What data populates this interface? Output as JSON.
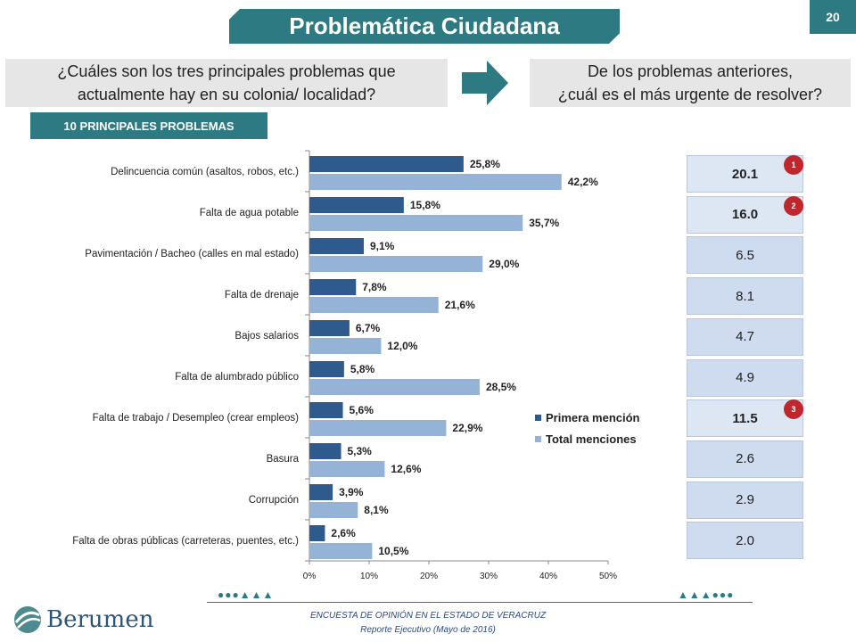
{
  "header": {
    "title": "Problemática Ciudadana",
    "page_number": "20"
  },
  "questions": {
    "left_line1": "¿Cuáles son los tres principales problemas que",
    "left_line2": "actualmente hay en su colonia/ localidad?",
    "right_line1": "De los problemas anteriores,",
    "right_line2": "¿cuál es el más urgente de resolver?"
  },
  "section_label": "10 PRINCIPALES PROBLEMAS",
  "colors": {
    "teal": "#2e7a83",
    "primera": "#2e5a8e",
    "total": "#95b3d7",
    "cell_light": "#cfdcef",
    "cell_highlight": "#dde7f4",
    "badge": "#c0272d"
  },
  "chart_data": {
    "type": "bar",
    "orientation": "horizontal",
    "categories": [
      "Delincuencia común (asaltos, robos, etc.)",
      "Falta de agua potable",
      "Pavimentación / Bacheo (calles en mal estado)",
      "Falta de drenaje",
      "Bajos salarios",
      "Falta de alumbrado público",
      "Falta de trabajo / Desempleo (crear empleos)",
      "Basura",
      "Corrupción",
      "Falta de obras públicas (carreteras, puentes, etc.)"
    ],
    "series": [
      {
        "name": "Primera mención",
        "values": [
          25.8,
          15.8,
          9.1,
          7.8,
          6.7,
          5.8,
          5.6,
          5.3,
          3.9,
          2.6
        ],
        "labels": [
          "25,8%",
          "15,8%",
          "9,1%",
          "7,8%",
          "6,7%",
          "5,8%",
          "5,6%",
          "5,3%",
          "3,9%",
          "2,6%"
        ]
      },
      {
        "name": "Total menciones",
        "values": [
          42.2,
          35.7,
          29.0,
          21.6,
          12.0,
          28.5,
          22.9,
          12.6,
          8.1,
          10.5
        ],
        "labels": [
          "42,2%",
          "35,7%",
          "29,0%",
          "21,6%",
          "12,0%",
          "28,5%",
          "22,9%",
          "12,6%",
          "8,1%",
          "10,5%"
        ]
      }
    ],
    "xlim": [
      0,
      50
    ],
    "xticks": [
      "0%",
      "10%",
      "20%",
      "30%",
      "40%",
      "50%"
    ],
    "legend_placement": "bottom-right",
    "grid": false
  },
  "urgent": {
    "values": [
      "20.1",
      "16.0",
      "6.5",
      "8.1",
      "4.7",
      "4.9",
      "11.5",
      "2.6",
      "2.9",
      "2.0"
    ],
    "highlight_rows": [
      0,
      1,
      6
    ],
    "ranks": [
      "1",
      "2",
      "3"
    ]
  },
  "footer": {
    "line1": "ENCUESTA DE OPINIÓN EN EL ESTADO DE VERACRUZ",
    "line2": "Reporte Ejecutivo (Mayo de 2016)",
    "logo_text": "Berumen"
  }
}
